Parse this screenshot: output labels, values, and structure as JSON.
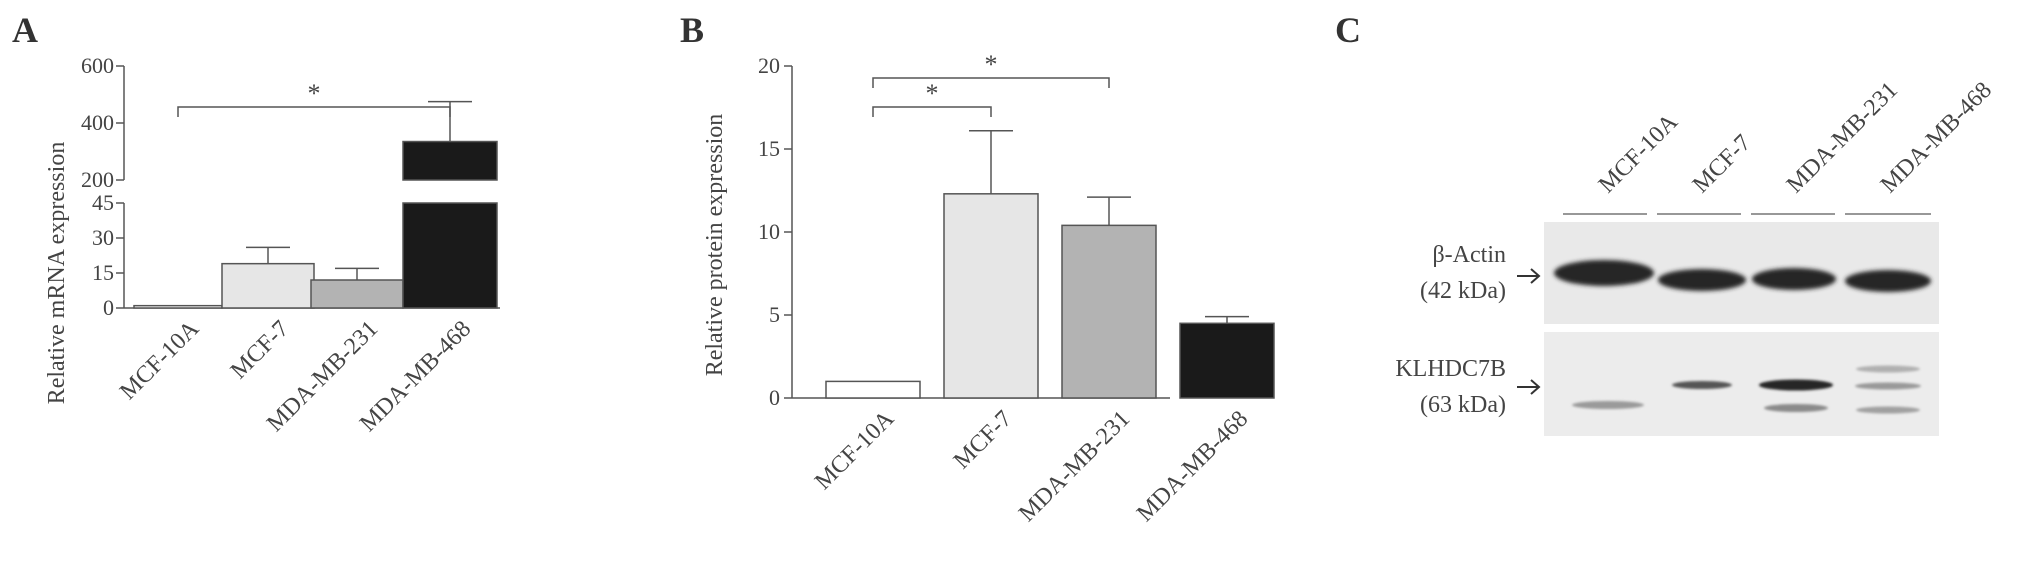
{
  "panels": {
    "A": {
      "letter": "A",
      "chart_data": {
        "type": "bar",
        "ylabel": "Relative mRNA expression",
        "categories": [
          "MCF-10A",
          "MCF-7",
          "MDA-MB-231",
          "MDA-MB-468"
        ],
        "values": [
          1,
          19,
          12,
          335
        ],
        "errors": [
          0,
          7,
          5,
          140
        ],
        "colors": [
          "#ffffff",
          "#e6e6e6",
          "#b3b3b3",
          "#1a1a1a"
        ],
        "ylim_lower": [
          0,
          45
        ],
        "ylim_upper": [
          200,
          600
        ],
        "yticks_lower": [
          "0",
          "15",
          "30",
          "45"
        ],
        "yticks_upper": [
          "200",
          "400",
          "600"
        ],
        "axis_break": true,
        "significance": [
          {
            "from": 0,
            "to": 3,
            "label": "*"
          }
        ]
      }
    },
    "B": {
      "letter": "B",
      "chart_data": {
        "type": "bar",
        "ylabel": "Relative protein expression",
        "categories": [
          "MCF-10A",
          "MCF-7",
          "MDA-MB-231",
          "MDA-MB-468"
        ],
        "values": [
          1,
          12.3,
          10.4,
          4.5
        ],
        "errors": [
          0,
          3.8,
          1.7,
          0.4
        ],
        "colors": [
          "#ffffff",
          "#e6e6e6",
          "#b3b3b3",
          "#1a1a1a"
        ],
        "ylim": [
          0,
          20
        ],
        "yticks": [
          "0",
          "5",
          "10",
          "15",
          "20"
        ],
        "significance": [
          {
            "from": 0,
            "to": 1,
            "label": "*"
          },
          {
            "from": 0,
            "to": 2,
            "label": "*"
          }
        ]
      }
    },
    "C": {
      "letter": "C",
      "lanes": [
        "MCF-10A",
        "MCF-7",
        "MDA-MB-231",
        "MDA-MB-468"
      ],
      "bands": [
        {
          "name": "β-Actin",
          "size": "(42 kDa)"
        },
        {
          "name": "KLHDC7B",
          "size": "(63 kDa)"
        }
      ]
    }
  }
}
